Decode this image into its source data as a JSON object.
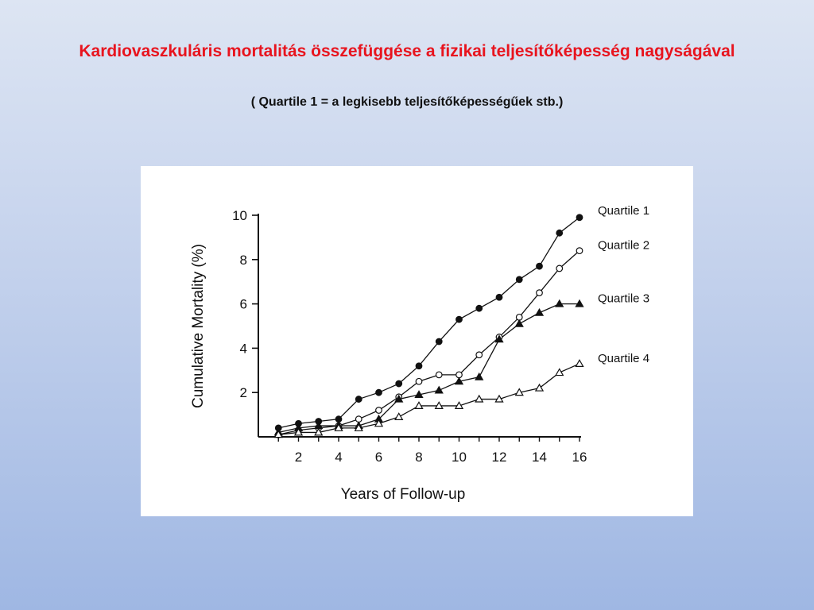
{
  "slide": {
    "title": "Kardiovaszkuláris mortalitás összefüggése a fizikai teljesítőképesség nagyságával",
    "subtitle": "( Quartile 1 = a legkisebb teljesítőképességűek stb.)"
  },
  "chart_data": {
    "type": "line",
    "xlabel": "Years of Follow-up",
    "ylabel": "Cumulative Mortality (%)",
    "xlim": [
      0,
      16
    ],
    "ylim": [
      0,
      10
    ],
    "xticks": [
      2,
      4,
      6,
      8,
      10,
      12,
      14,
      16
    ],
    "yticks": [
      2,
      4,
      6,
      8,
      10
    ],
    "grid": false,
    "legend": "right, labels at line ends",
    "x": [
      1,
      2,
      3,
      4,
      5,
      6,
      7,
      8,
      9,
      10,
      11,
      12,
      13,
      14,
      15,
      16
    ],
    "series": [
      {
        "name": "Quartile 1",
        "marker": "filled-circle",
        "values": [
          0.4,
          0.6,
          0.7,
          0.8,
          1.7,
          2.0,
          2.4,
          3.2,
          4.3,
          5.3,
          5.8,
          6.3,
          7.1,
          7.7,
          9.2,
          9.9
        ]
      },
      {
        "name": "Quartile 2",
        "marker": "open-circle",
        "values": [
          0.1,
          0.3,
          0.4,
          0.5,
          0.8,
          1.2,
          1.8,
          2.5,
          2.8,
          2.8,
          3.7,
          4.5,
          5.4,
          6.5,
          7.6,
          8.4
        ]
      },
      {
        "name": "Quartile 3",
        "marker": "filled-triangle",
        "values": [
          0.2,
          0.4,
          0.5,
          0.5,
          0.5,
          0.8,
          1.7,
          1.9,
          2.1,
          2.5,
          2.7,
          4.4,
          5.1,
          5.6,
          6.0,
          6.0
        ]
      },
      {
        "name": "Quartile 4",
        "marker": "open-triangle",
        "values": [
          0.1,
          0.2,
          0.2,
          0.4,
          0.4,
          0.6,
          0.9,
          1.4,
          1.4,
          1.4,
          1.7,
          1.7,
          2.0,
          2.2,
          2.9,
          3.3
        ]
      }
    ]
  }
}
